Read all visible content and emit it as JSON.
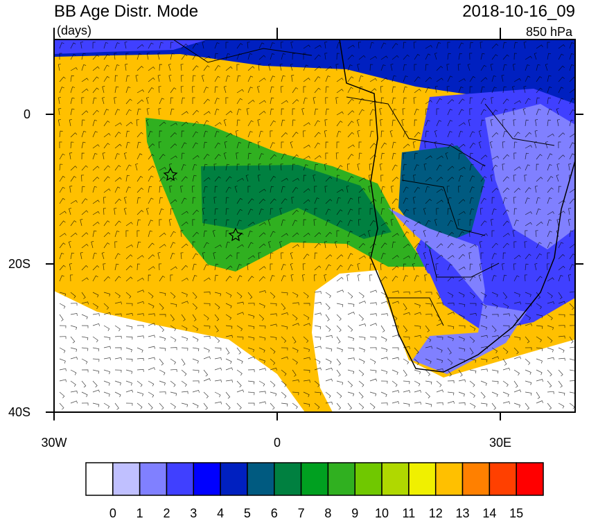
{
  "title": "BB Age Distr. Mode",
  "units": "(days)",
  "date": "2018-10-16_09",
  "level": "850 hPa",
  "lat_labels": [
    "0",
    "20S",
    "40S"
  ],
  "lon_labels": [
    "30W",
    "0",
    "30E"
  ],
  "colorbar": {
    "colors": [
      "#ffffff",
      "#c0c0ff",
      "#8080ff",
      "#4040ff",
      "#0000ff",
      "#0020c0",
      "#005a80",
      "#008040",
      "#00a020",
      "#30b020",
      "#70c800",
      "#b0d800",
      "#f0f000",
      "#ffc000",
      "#ff8000",
      "#ff4000",
      "#ff0000"
    ],
    "labels": [
      "0",
      "1",
      "2",
      "3",
      "4",
      "5",
      "6",
      "7",
      "8",
      "9",
      "10",
      "11",
      "12",
      "13",
      "14",
      "15"
    ]
  }
}
